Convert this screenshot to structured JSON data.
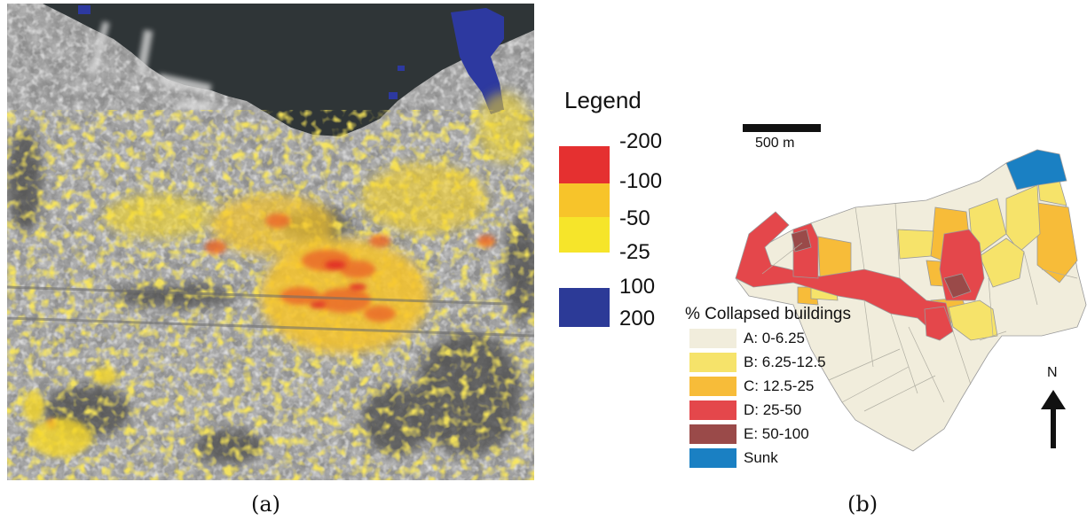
{
  "colors": {
    "legend_a": [
      "#e53030",
      "#f7c42a",
      "#f6e52a",
      "#2c3a97"
    ],
    "collapse": {
      "A": "#f1eddc",
      "B": "#f6e36a",
      "C": "#f7bc39",
      "D": "#e4474b",
      "E": "#9a4a49",
      "Sunk": "#1a80c3"
    }
  },
  "panel_a": {
    "legend_title": "Legend",
    "legend_values": [
      "-200",
      "-100",
      "-50",
      "-25",
      "100",
      "200"
    ]
  },
  "panel_b": {
    "scale_label": "500 m",
    "legend_title": "% Collapsed buildings",
    "classes": [
      {
        "label": "A: 0-6.25"
      },
      {
        "label": "B: 6.25-12.5"
      },
      {
        "label": "C: 12.5-25"
      },
      {
        "label": "D: 25-50"
      },
      {
        "label": "E: 50-100"
      },
      {
        "label": "Sunk"
      }
    ],
    "north_label": "N"
  },
  "captions": {
    "a": "(a)",
    "b": "(b)"
  }
}
